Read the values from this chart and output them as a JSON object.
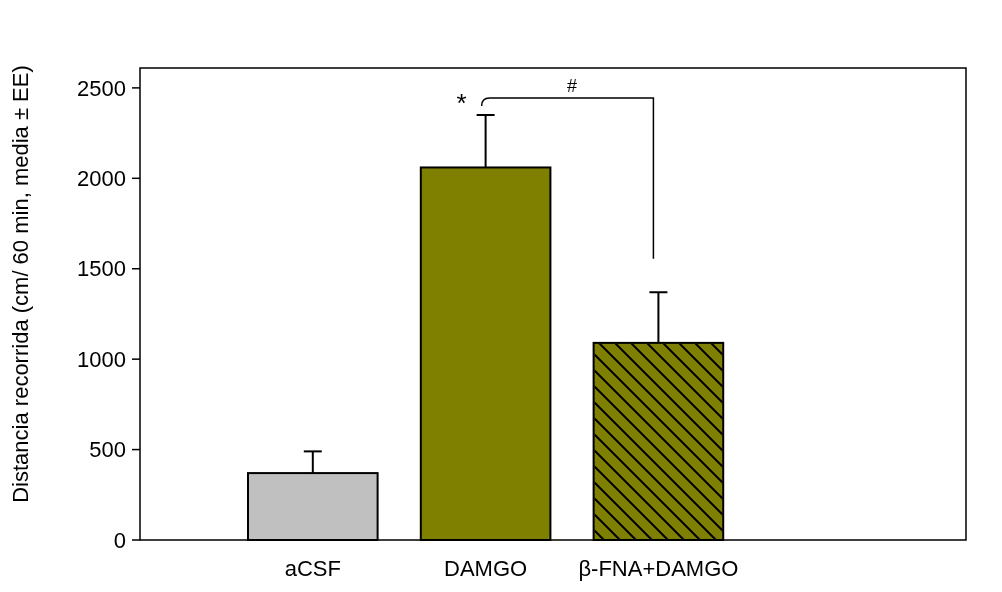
{
  "chart_data": {
    "type": "bar",
    "ylabel": "Distancia recorrida (cm/ 60 min, media ± EE)",
    "categories": [
      "aCSF",
      "DAMGO",
      "β-FNA+DAMGO"
    ],
    "values": [
      370,
      2060,
      1090
    ],
    "colors": [
      "#c0c0c0",
      "#808000",
      "#808000"
    ],
    "errors": [
      [
        370,
        490
      ],
      [
        2060,
        2350
      ],
      [
        1090,
        1370
      ]
    ],
    "ylim": [
      0,
      2610
    ],
    "yticks": [
      0,
      500,
      1000,
      1500,
      2000,
      2500
    ],
    "annotations": [
      "*",
      "#"
    ]
  }
}
